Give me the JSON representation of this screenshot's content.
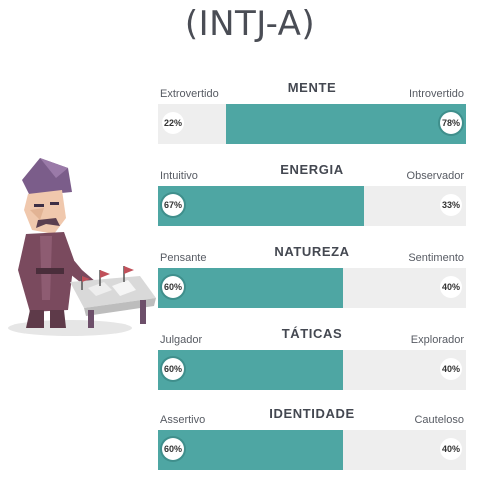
{
  "title": "(INTJ-A)",
  "colors": {
    "accent": "#4ea6a3",
    "track": "#eeeeee",
    "text": "#444851"
  },
  "traits": [
    {
      "category": "MENTE",
      "left_label": "Extrovertido",
      "right_label": "Introvertido",
      "left_pct": "22%",
      "right_pct": "78%",
      "dominant": "right",
      "dominant_value": 78
    },
    {
      "category": "ENERGIA",
      "left_label": "Intuitivo",
      "right_label": "Observador",
      "left_pct": "67%",
      "right_pct": "33%",
      "dominant": "left",
      "dominant_value": 67
    },
    {
      "category": "NATUREZA",
      "left_label": "Pensante",
      "right_label": "Sentimento",
      "left_pct": "60%",
      "right_pct": "40%",
      "dominant": "left",
      "dominant_value": 60
    },
    {
      "category": "TÁTICAS",
      "left_label": "Julgador",
      "right_label": "Explorador",
      "left_pct": "60%",
      "right_pct": "40%",
      "dominant": "left",
      "dominant_value": 60
    },
    {
      "category": "IDENTIDADE",
      "left_label": "Assertivo",
      "right_label": "Cauteloso",
      "left_pct": "60%",
      "right_pct": "40%",
      "dominant": "left",
      "dominant_value": 60
    }
  ]
}
